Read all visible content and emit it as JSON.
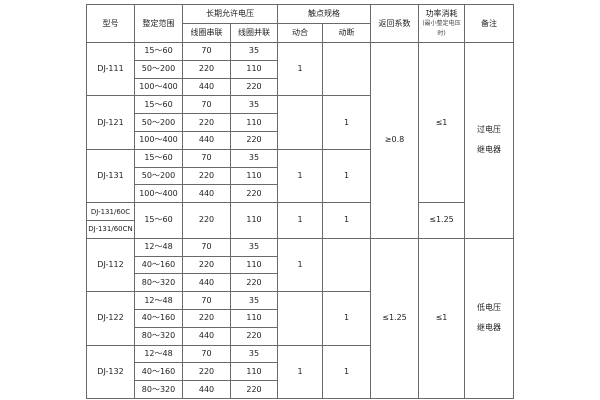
{
  "header": {
    "model": "型号",
    "range": "整定范围",
    "long_voltage": "长期允许电压",
    "series": "线圈串联",
    "parallel": "线圈并联",
    "contact": "触点规格",
    "make": "动合",
    "break": "动断",
    "return_coef": "返回系数",
    "power": "功率消耗",
    "power_sub": "(最小整定电压时)",
    "notes": "备注"
  },
  "groups": [
    {
      "rows": 3,
      "models": [
        "DJ-111"
      ],
      "ranges": [
        "15～60",
        "50～200",
        "100～400"
      ],
      "series": [
        "70",
        "220",
        "440"
      ],
      "parallel": [
        "35",
        "110",
        "220"
      ],
      "make": "1",
      "break": ""
    },
    {
      "rows": 3,
      "models": [
        "DJ-121"
      ],
      "ranges": [
        "15～60",
        "50～200",
        "100～400"
      ],
      "series": [
        "70",
        "220",
        "440"
      ],
      "parallel": [
        "35",
        "110",
        "220"
      ],
      "make": "",
      "break": "1"
    },
    {
      "rows": 3,
      "models": [
        "DJ-131"
      ],
      "ranges": [
        "15～60",
        "50～200",
        "100～400"
      ],
      "series": [
        "70",
        "220",
        "440"
      ],
      "parallel": [
        "35",
        "110",
        "220"
      ],
      "make": "1",
      "break": "1"
    },
    {
      "rows": 2,
      "models": [
        "DJ-131/60C",
        "DJ-131/60CN"
      ],
      "ranges": [
        "15～60"
      ],
      "series": [
        "220"
      ],
      "parallel": [
        "110"
      ],
      "make": "1",
      "break": "1"
    },
    {
      "rows": 3,
      "models": [
        "DJ-112"
      ],
      "ranges": [
        "12～48",
        "40～160",
        "80～320"
      ],
      "series": [
        "70",
        "220",
        "440"
      ],
      "parallel": [
        "35",
        "110",
        "220"
      ],
      "make": "1",
      "break": ""
    },
    {
      "rows": 3,
      "models": [
        "DJ-122"
      ],
      "ranges": [
        "12～48",
        "40～160",
        "80～320"
      ],
      "series": [
        "70",
        "220",
        "440"
      ],
      "parallel": [
        "35",
        "110",
        "220"
      ],
      "make": "",
      "break": "1"
    },
    {
      "rows": 3,
      "models": [
        "DJ-132"
      ],
      "ranges": [
        "12～48",
        "40～160",
        "80～320"
      ],
      "series": [
        "70",
        "220",
        "440"
      ],
      "parallel": [
        "35",
        "110",
        "220"
      ],
      "make": "1",
      "break": "1"
    }
  ],
  "return_coef": [
    {
      "value": "≥0.8",
      "groups": 4
    },
    {
      "value": "≤1.25",
      "groups": 3
    }
  ],
  "power": [
    {
      "value": "≤1",
      "groups": 3
    },
    {
      "value": "≤1.25",
      "groups": 1
    },
    {
      "value": "≤1",
      "groups": 3
    }
  ],
  "notes": [
    {
      "lines": [
        "过电压",
        "继电器"
      ],
      "groups": 4
    },
    {
      "lines": [
        "低电压",
        "继电器"
      ],
      "groups": 3
    }
  ]
}
